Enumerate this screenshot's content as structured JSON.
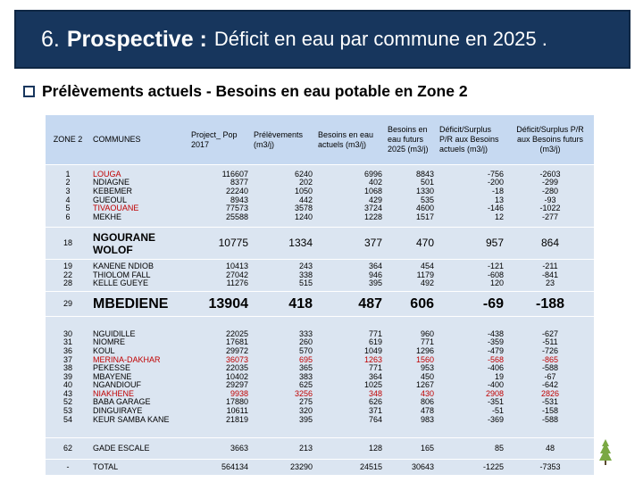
{
  "title": {
    "number": "6.",
    "bold": "Prospective :",
    "rest": "Déficit en eau par commune en 2025 ."
  },
  "subtitle": "Prélèvements actuels - Besoins en eau potable en Zone 2",
  "table": {
    "headers": {
      "zone": "ZONE 2",
      "communes": "COMMUNES",
      "pop": "Project_ Pop 2017",
      "prelev": "Prélèvements (m3/j)",
      "besoins": "Besoins en eau actuels (m3/j)",
      "futurs": "Besoins en eau futurs 2025 (m3/j)",
      "deficit_actuels": "Déficit/Surplus P/R aux Besoins actuels (m3/j)",
      "deficit_futurs": "Déficit/Surplus P/R aux Besoins futurs (m3/j)"
    },
    "group1": {
      "zones": "1\n2\n3\n4\n5\n6",
      "communes": [
        {
          "name": "LOUGA",
          "red": true
        },
        {
          "name": "NDIAGNE",
          "red": false
        },
        {
          "name": "KEBEMER",
          "red": false
        },
        {
          "name": "GUEOUL",
          "red": false
        },
        {
          "name": "TIVAOUANE",
          "red": true
        },
        {
          "name": "MEKHE",
          "red": false
        }
      ],
      "pop": "116607\n8377\n22240\n8943\n77573\n25588",
      "prelev": "6240\n202\n1050\n442\n3578\n1240",
      "besoins": "6996\n402\n1068\n429\n3724\n1228",
      "futurs": "8843\n501\n1330\n535\n4600\n1517",
      "def_act": "-756\n-200\n-18\n13\n-146\n12",
      "def_fut": "-2603\n-299\n-280\n-93\n-1022\n-277"
    },
    "ngourane": {
      "zone": "18",
      "name": "NGOURANE WOLOF",
      "pop": "10775",
      "prelev": "1334",
      "besoins": "377",
      "futurs": "470",
      "def_act": "957",
      "def_fut": "864"
    },
    "group2": {
      "zones": "19\n22\n28",
      "communes": "KANENE NDIOB\nTHIOLOM FALL\nKELLE GUEYE",
      "pop": "10413\n27042\n11276",
      "prelev": "243\n338\n515",
      "besoins": "364\n946\n395",
      "futurs": "454\n1179\n492",
      "def_act": "-121\n-608\n120",
      "def_fut": "-211\n-841\n23"
    },
    "mbediene": {
      "zone": "29",
      "name": "MBEDIENE",
      "pop": "13904",
      "prelev": "418",
      "besoins": "487",
      "futurs": "606",
      "def_act": "-69",
      "def_fut": "-188"
    },
    "group3": {
      "zones": "30\n31\n36\n37\n38\n39\n40\n43\n52\n53\n54",
      "communes": [
        {
          "name": "NGUIDILLE",
          "red": false
        },
        {
          "name": "NIOMRE",
          "red": false
        },
        {
          "name": "KOUL",
          "red": false
        },
        {
          "name": "MERINA-DAKHAR",
          "red": true
        },
        {
          "name": "PEKESSE",
          "red": false
        },
        {
          "name": "MBAYENE",
          "red": false
        },
        {
          "name": "NGANDIOUF",
          "red": false
        },
        {
          "name": "NIAKHENE",
          "red": true
        },
        {
          "name": "BABA GARAGE",
          "red": false
        },
        {
          "name": "DINGUIRAYE",
          "red": false
        },
        {
          "name": "KEUR SAMBA KANE",
          "red": false
        }
      ],
      "pop": [
        "22025",
        "17681",
        "29972",
        "36073",
        "22035",
        "10402",
        "29297",
        "9938",
        "17880",
        "10611",
        "21819"
      ],
      "prelev": [
        "333",
        "260",
        "570",
        "695",
        "365",
        "383",
        "625",
        "3256",
        "275",
        "320",
        "395"
      ],
      "besoins": [
        "771",
        "619",
        "1049",
        "1263",
        "771",
        "364",
        "1025",
        "348",
        "626",
        "371",
        "764"
      ],
      "futurs": [
        "960",
        "771",
        "1296",
        "1560",
        "953",
        "450",
        "1267",
        "430",
        "806",
        "478",
        "983"
      ],
      "def_act": [
        "-438",
        "-359",
        "-479",
        "-568",
        "-406",
        "19",
        "-400",
        "2908",
        "-351",
        "-51",
        "-369"
      ],
      "def_fut": [
        "-627",
        "-511",
        "-726",
        "-865",
        "-588",
        "-67",
        "-642",
        "2826",
        "-531",
        "-158",
        "-588"
      ],
      "red_rows": [
        false,
        false,
        false,
        true,
        false,
        false,
        false,
        true,
        false,
        false,
        false
      ]
    },
    "gade": {
      "zone": "62",
      "name": "GADE ESCALE",
      "pop": "3663",
      "prelev": "213",
      "besoins": "128",
      "futurs": "165",
      "def_act": "85",
      "def_fut": "48"
    },
    "total": {
      "zone": "-",
      "name": "TOTAL",
      "pop": "564134",
      "prelev": "23290",
      "besoins": "24515",
      "futurs": "30643",
      "def_act": "-1225",
      "def_fut": "-7353"
    }
  }
}
